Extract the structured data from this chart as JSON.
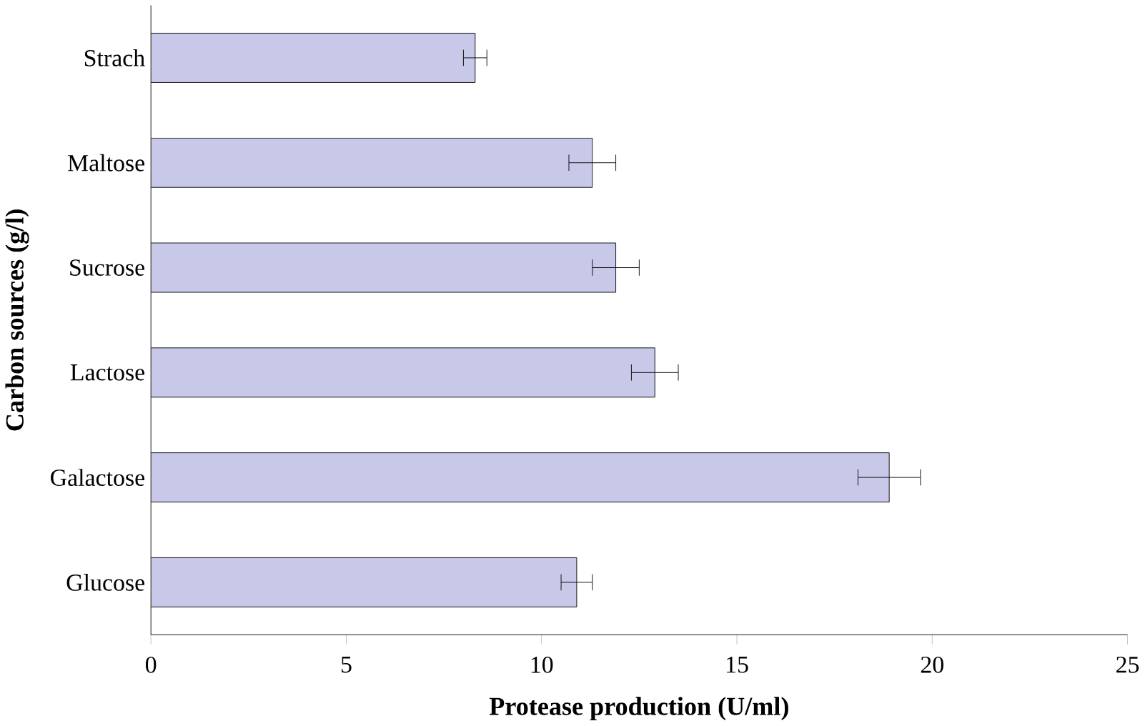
{
  "chart_data": {
    "type": "bar",
    "orientation": "horizontal",
    "xlabel": "Protease production (U/ml)",
    "ylabel": "Carbon sources (g/l)",
    "categories": [
      "Strach",
      "Maltose",
      "Sucrose",
      "Lactose",
      "Galactose",
      "Glucose"
    ],
    "values": [
      8.3,
      11.3,
      11.9,
      12.9,
      18.9,
      10.9
    ],
    "errors": [
      0.3,
      0.6,
      0.6,
      0.6,
      0.8,
      0.4
    ],
    "color": "#c8c8e8",
    "xlim": [
      0,
      25
    ],
    "xticks": [
      0,
      5,
      10,
      15,
      20,
      25
    ],
    "grid": false
  }
}
